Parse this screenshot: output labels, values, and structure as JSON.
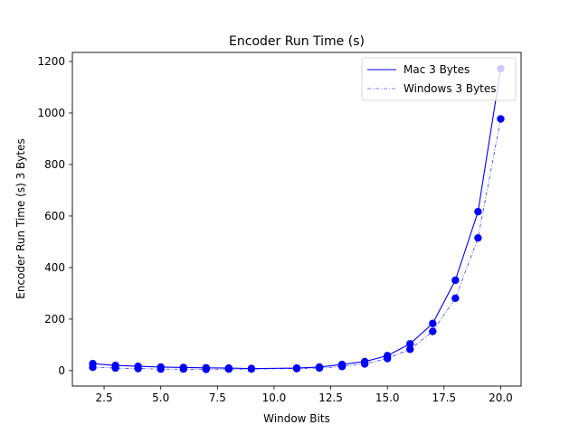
{
  "chart_data": {
    "type": "line",
    "title": "Encoder Run Time (s)",
    "xlabel": "Window Bits",
    "ylabel": "Encoder Run Time (s) 3 Bytes",
    "xlim": [
      1.1,
      20.9
    ],
    "ylim": [
      -60,
      1235
    ],
    "xticks": [
      2.5,
      5.0,
      7.5,
      10.0,
      12.5,
      15.0,
      17.5,
      20.0
    ],
    "xtick_labels": [
      "2.5",
      "5.0",
      "7.5",
      "10.0",
      "12.5",
      "15.0",
      "17.5",
      "20.0"
    ],
    "yticks": [
      0,
      200,
      400,
      600,
      800,
      1000,
      1200
    ],
    "ytick_labels": [
      "0",
      "200",
      "400",
      "600",
      "800",
      "1000",
      "1200"
    ],
    "grid": false,
    "legend_position": "top-right",
    "marker_color": "#0000ff",
    "series": [
      {
        "name": "Mac 3 Bytes",
        "line_style": "solid",
        "color": "#0000ff",
        "x": [
          2,
          3,
          4,
          5,
          6,
          7,
          8,
          9,
          11,
          12,
          13,
          14,
          15,
          16,
          17,
          18,
          19,
          20
        ],
        "y": [
          27,
          20,
          17,
          14,
          12,
          11,
          10,
          8,
          10,
          14,
          24,
          35,
          58,
          104,
          183,
          351,
          617,
          1172
        ]
      },
      {
        "name": "Windows 3 Bytes",
        "line_style": "dashdot",
        "color": "#0000ff",
        "x": [
          2,
          3,
          4,
          5,
          6,
          7,
          8,
          9,
          11,
          12,
          13,
          14,
          15,
          16,
          17,
          18,
          19,
          20
        ],
        "y": [
          13,
          10,
          8,
          6,
          6,
          5,
          6,
          6,
          8,
          10,
          16,
          26,
          47,
          83,
          152,
          281,
          515,
          977
        ]
      }
    ]
  }
}
